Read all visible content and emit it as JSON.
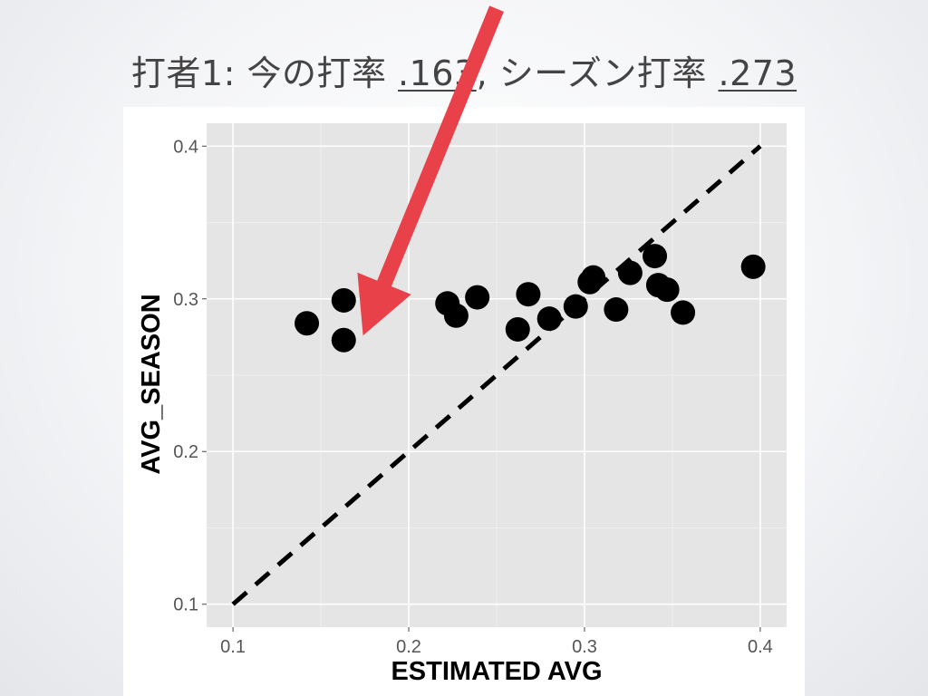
{
  "slide": {
    "title_prefix": "打者1: 今の打率 ",
    "title_value1": ".163",
    "title_middle": ", シーズン打率 ",
    "title_value2": ".273"
  },
  "colors": {
    "panel": "#e5e5e5",
    "grid": "#ffffff",
    "points": "#000000",
    "arrow": "#e8414a",
    "tick_text": "#555555"
  },
  "chart_data": {
    "type": "scatter",
    "title": "",
    "xlabel": "ESTIMATED AVG",
    "ylabel": "AVG_SEASON",
    "xlim": [
      0.085,
      0.415
    ],
    "ylim": [
      0.085,
      0.415
    ],
    "xticks": [
      0.1,
      0.2,
      0.3,
      0.4
    ],
    "yticks": [
      0.1,
      0.2,
      0.3,
      0.4
    ],
    "xtick_labels": [
      "0.1",
      "0.2",
      "0.3",
      "0.4"
    ],
    "ytick_labels": [
      "0.1",
      "0.2",
      "0.3",
      "0.4"
    ],
    "grid": true,
    "reference_line": {
      "style": "dashed",
      "from": [
        0.1,
        0.1
      ],
      "to": [
        0.4,
        0.4
      ]
    },
    "points": [
      {
        "x": 0.142,
        "y": 0.284
      },
      {
        "x": 0.163,
        "y": 0.299
      },
      {
        "x": 0.163,
        "y": 0.273
      },
      {
        "x": 0.222,
        "y": 0.297
      },
      {
        "x": 0.227,
        "y": 0.289
      },
      {
        "x": 0.239,
        "y": 0.301
      },
      {
        "x": 0.262,
        "y": 0.28
      },
      {
        "x": 0.268,
        "y": 0.303
      },
      {
        "x": 0.28,
        "y": 0.287
      },
      {
        "x": 0.295,
        "y": 0.295
      },
      {
        "x": 0.303,
        "y": 0.311
      },
      {
        "x": 0.305,
        "y": 0.314
      },
      {
        "x": 0.318,
        "y": 0.293
      },
      {
        "x": 0.326,
        "y": 0.317
      },
      {
        "x": 0.34,
        "y": 0.328
      },
      {
        "x": 0.342,
        "y": 0.309
      },
      {
        "x": 0.347,
        "y": 0.306
      },
      {
        "x": 0.356,
        "y": 0.291
      },
      {
        "x": 0.396,
        "y": 0.321
      }
    ],
    "annotation": {
      "type": "arrow",
      "from": [
        0.25,
        0.49
      ],
      "to": [
        0.174,
        0.276
      ]
    }
  }
}
